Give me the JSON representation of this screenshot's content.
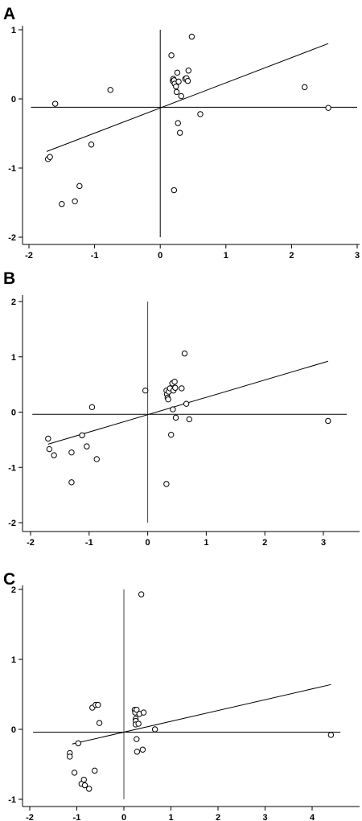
{
  "chart_data": [
    {
      "type": "scatter",
      "panel_label": "A",
      "title": "",
      "xlabel": "",
      "ylabel": "",
      "xlim": [
        -2,
        3
      ],
      "ylim": [
        -2,
        1
      ],
      "xticks": [
        "-2",
        "-1",
        "0",
        "1",
        "2",
        "3"
      ],
      "yticks": [
        "1",
        "0",
        "-1",
        "-2"
      ],
      "grid": false,
      "points": [
        [
          -1.71,
          -0.87
        ],
        [
          -1.68,
          -0.84
        ],
        [
          -1.6,
          -0.07
        ],
        [
          -1.5,
          -1.52
        ],
        [
          -1.3,
          -1.48
        ],
        [
          -1.23,
          -1.26
        ],
        [
          -1.05,
          -0.66
        ],
        [
          -0.76,
          0.13
        ],
        [
          0.17,
          0.63
        ],
        [
          0.19,
          0.26
        ],
        [
          0.2,
          0.29
        ],
        [
          0.21,
          0.27
        ],
        [
          0.22,
          0.22
        ],
        [
          0.24,
          0.18
        ],
        [
          0.26,
          0.38
        ],
        [
          0.25,
          0.1
        ],
        [
          0.28,
          0.25
        ],
        [
          0.27,
          -0.35
        ],
        [
          0.3,
          -0.49
        ],
        [
          0.32,
          0.04
        ],
        [
          0.38,
          0.29
        ],
        [
          0.4,
          0.3
        ],
        [
          0.42,
          0.26
        ],
        [
          0.43,
          0.41
        ],
        [
          0.48,
          0.9
        ],
        [
          0.21,
          -1.32
        ],
        [
          0.61,
          -0.22
        ],
        [
          2.2,
          0.17
        ],
        [
          2.56,
          -0.13
        ]
      ],
      "regression_line": [
        [
          -1.73,
          -0.76
        ],
        [
          2.56,
          0.8
        ]
      ],
      "v_line": {
        "x": 0,
        "y": [
          -2,
          1
        ]
      },
      "h_line": {
        "y": -0.12,
        "x": [
          -1.97,
          3.0
        ]
      }
    },
    {
      "type": "scatter",
      "panel_label": "B",
      "title": "",
      "xlabel": "",
      "ylabel": "",
      "xlim": [
        -2,
        3.4
      ],
      "ylim": [
        -2,
        2
      ],
      "xticks": [
        "-2",
        "-1",
        "0",
        "1",
        "2",
        "3"
      ],
      "yticks": [
        "2",
        "1",
        "0",
        "-1",
        "-2"
      ],
      "grid": false,
      "points": [
        [
          -1.7,
          -0.48
        ],
        [
          -1.68,
          -0.67
        ],
        [
          -1.6,
          -0.78
        ],
        [
          -1.3,
          -0.73
        ],
        [
          -1.3,
          -1.27
        ],
        [
          -1.12,
          -0.42
        ],
        [
          -1.04,
          -0.62
        ],
        [
          -0.95,
          0.09
        ],
        [
          -0.87,
          -0.85
        ],
        [
          -0.04,
          0.39
        ],
        [
          0.32,
          -1.3
        ],
        [
          0.32,
          0.39
        ],
        [
          0.33,
          0.32
        ],
        [
          0.34,
          0.26
        ],
        [
          0.35,
          0.23
        ],
        [
          0.36,
          0.37
        ],
        [
          0.38,
          0.43
        ],
        [
          0.4,
          -0.41
        ],
        [
          0.42,
          0.52
        ],
        [
          0.43,
          0.05
        ],
        [
          0.44,
          0.39
        ],
        [
          0.46,
          0.55
        ],
        [
          0.47,
          0.44
        ],
        [
          0.48,
          -0.1
        ],
        [
          0.58,
          0.43
        ],
        [
          0.63,
          1.06
        ],
        [
          0.66,
          0.15
        ],
        [
          0.71,
          -0.13
        ],
        [
          3.08,
          -0.16
        ]
      ],
      "regression_line": [
        [
          -1.7,
          -0.58
        ],
        [
          3.08,
          0.92
        ]
      ],
      "v_line": {
        "x": 0,
        "y": [
          -2,
          2
        ]
      },
      "h_line": {
        "y": -0.04,
        "x": [
          -1.97,
          3.4
        ]
      }
    },
    {
      "type": "scatter",
      "panel_label": "C",
      "title": "",
      "xlabel": "",
      "ylabel": "",
      "xlim": [
        -2,
        4.6
      ],
      "ylim": [
        -1,
        2
      ],
      "xticks": [
        "-2",
        "-1",
        "0",
        "1",
        "2",
        "3",
        "4"
      ],
      "yticks": [
        "2",
        "1",
        "0",
        "-1"
      ],
      "grid": false,
      "points": [
        [
          -1.15,
          -0.34
        ],
        [
          -1.15,
          -0.39
        ],
        [
          -1.05,
          -0.62
        ],
        [
          -0.97,
          -0.2
        ],
        [
          -0.9,
          -0.78
        ],
        [
          -0.85,
          -0.72
        ],
        [
          -0.83,
          -0.8
        ],
        [
          -0.74,
          -0.85
        ],
        [
          -0.67,
          0.31
        ],
        [
          -0.62,
          -0.59
        ],
        [
          -0.6,
          0.35
        ],
        [
          -0.55,
          0.35
        ],
        [
          -0.52,
          0.09
        ],
        [
          0.23,
          0.28
        ],
        [
          0.24,
          0.24
        ],
        [
          0.25,
          0.15
        ],
        [
          0.25,
          0.12
        ],
        [
          0.25,
          0.07
        ],
        [
          0.27,
          0.28
        ],
        [
          0.27,
          -0.14
        ],
        [
          0.28,
          -0.32
        ],
        [
          0.31,
          0.08
        ],
        [
          0.33,
          0.22
        ],
        [
          0.37,
          1.93
        ],
        [
          0.4,
          -0.29
        ],
        [
          0.42,
          0.24
        ],
        [
          0.66,
          0.0
        ],
        [
          4.4,
          -0.08
        ]
      ],
      "regression_line": [
        [
          -1.1,
          -0.21
        ],
        [
          4.4,
          0.64
        ]
      ],
      "v_line": {
        "x": 0,
        "y": [
          -1,
          2
        ]
      },
      "h_line": {
        "y": -0.04,
        "x": [
          -1.93,
          4.6
        ]
      }
    }
  ]
}
